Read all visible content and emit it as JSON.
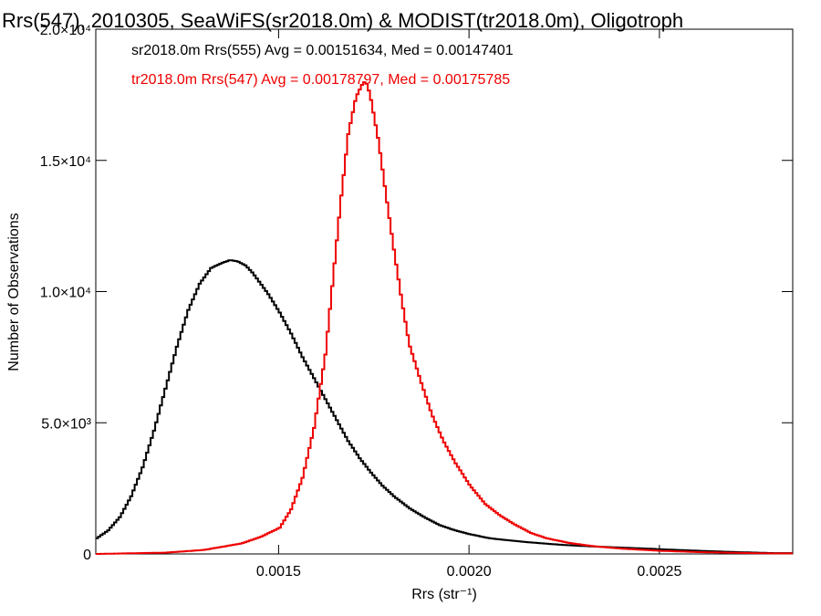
{
  "chart_data": {
    "type": "histogram",
    "title": "Rrs(547), 2010305, SeaWiFS(sr2018.0m) & MODIST(tr2018.0m), Oligotroph",
    "xlabel": "Rrs (str⁻¹)",
    "ylabel": "Number of Observations",
    "xlim": [
      0.00102,
      0.00285
    ],
    "ylim": [
      0,
      20000
    ],
    "x_ticks": [
      {
        "value": 0.0015,
        "label": "0.0015"
      },
      {
        "value": 0.002,
        "label": "0.0020"
      },
      {
        "value": 0.0025,
        "label": "0.0025"
      }
    ],
    "y_ticks": [
      {
        "value": 0,
        "label": "0"
      },
      {
        "value": 5000,
        "label": "5.0×10³"
      },
      {
        "value": 10000,
        "label": "1.0×10⁴"
      },
      {
        "value": 15000,
        "label": "1.5×10⁴"
      },
      {
        "value": 20000,
        "label": "2.0×10⁴"
      }
    ],
    "series": [
      {
        "label": "sr2018.0m Rrs(555) Avg = 0.00151634, Med = 0.00147401",
        "color": "#000000",
        "step": "post",
        "x": [
          0.00102,
          0.00105,
          0.00108,
          0.00111,
          0.00114,
          0.00117,
          0.0012,
          0.00123,
          0.00126,
          0.00129,
          0.00132,
          0.00135,
          0.00137,
          0.00139,
          0.00141,
          0.00143,
          0.00145,
          0.00147,
          0.0015,
          0.00153,
          0.00156,
          0.00159,
          0.00162,
          0.00165,
          0.00168,
          0.00171,
          0.00174,
          0.00177,
          0.0018,
          0.00184,
          0.00188,
          0.00192,
          0.00196,
          0.002,
          0.00205,
          0.0021,
          0.00215,
          0.0022,
          0.00225,
          0.0023,
          0.0024,
          0.0025,
          0.0026,
          0.0027,
          0.0028,
          0.00285
        ],
        "y": [
          600,
          900,
          1400,
          2200,
          3300,
          4700,
          6300,
          7900,
          9300,
          10300,
          10900,
          11100,
          11200,
          11150,
          11000,
          10700,
          10300,
          9900,
          9200,
          8400,
          7500,
          6700,
          5900,
          5100,
          4300,
          3650,
          3100,
          2600,
          2200,
          1750,
          1400,
          1100,
          900,
          750,
          600,
          520,
          450,
          390,
          340,
          300,
          240,
          180,
          120,
          70,
          30,
          30
        ]
      },
      {
        "label": "tr2018.0m Rrs(547) Avg = 0.00178797, Med = 0.00175785",
        "color": "#ee0000",
        "step": "post",
        "x": [
          0.00102,
          0.0012,
          0.0013,
          0.0014,
          0.00145,
          0.0015,
          0.00153,
          0.00156,
          0.00159,
          0.00162,
          0.00164,
          0.00166,
          0.00168,
          0.0017,
          0.00172,
          0.00173,
          0.00174,
          0.00176,
          0.00178,
          0.0018,
          0.00182,
          0.00184,
          0.00187,
          0.0019,
          0.00193,
          0.00196,
          0.002,
          0.00204,
          0.00208,
          0.00212,
          0.00216,
          0.0022,
          0.00226,
          0.00232,
          0.0024,
          0.0025,
          0.0026,
          0.0027,
          0.0028,
          0.00285
        ],
        "y": [
          0,
          50,
          150,
          400,
          650,
          1000,
          1700,
          2900,
          4800,
          7600,
          10500,
          13400,
          16000,
          17400,
          18000,
          17900,
          17300,
          15700,
          13600,
          11600,
          9700,
          8000,
          6600,
          5300,
          4300,
          3500,
          2600,
          1900,
          1450,
          1100,
          800,
          600,
          420,
          300,
          200,
          120,
          70,
          40,
          20,
          20
        ]
      }
    ]
  }
}
